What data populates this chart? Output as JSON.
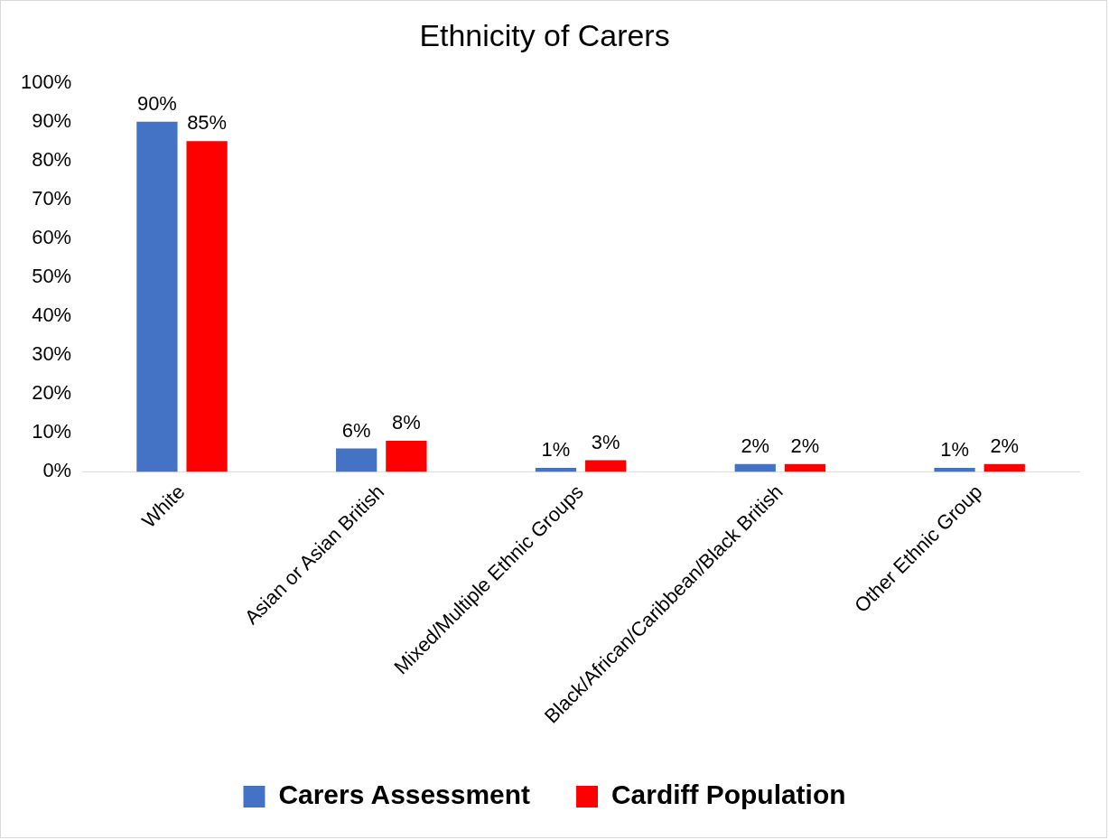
{
  "chart_data": {
    "type": "bar",
    "title": "Ethnicity of Carers",
    "categories": [
      "White",
      "Asian or Asian British",
      "Mixed/Multiple Ethnic Groups",
      "Black/African/Caribbean/Black British",
      "Other Ethnic Group"
    ],
    "series": [
      {
        "name": "Carers Assessment",
        "color": "#4472c4",
        "values": [
          90,
          6,
          1,
          2,
          1
        ],
        "value_labels": [
          "90%",
          "6%",
          "1%",
          "2%",
          "1%"
        ]
      },
      {
        "name": "Cardiff Population",
        "color": "#ff0000",
        "values": [
          85,
          8,
          3,
          2,
          2
        ],
        "value_labels": [
          "85%",
          "8%",
          "3%",
          "2%",
          "2%"
        ]
      }
    ],
    "ylim": [
      0,
      100
    ],
    "yticks": [
      {
        "value": 0,
        "label": "0%"
      },
      {
        "value": 10,
        "label": "10%"
      },
      {
        "value": 20,
        "label": "20%"
      },
      {
        "value": 30,
        "label": "30%"
      },
      {
        "value": 40,
        "label": "40%"
      },
      {
        "value": 50,
        "label": "50%"
      },
      {
        "value": 60,
        "label": "60%"
      },
      {
        "value": 70,
        "label": "70%"
      },
      {
        "value": 80,
        "label": "80%"
      },
      {
        "value": 90,
        "label": "90%"
      },
      {
        "value": 100,
        "label": "100%"
      }
    ],
    "grid": false,
    "legend": "bottom"
  }
}
